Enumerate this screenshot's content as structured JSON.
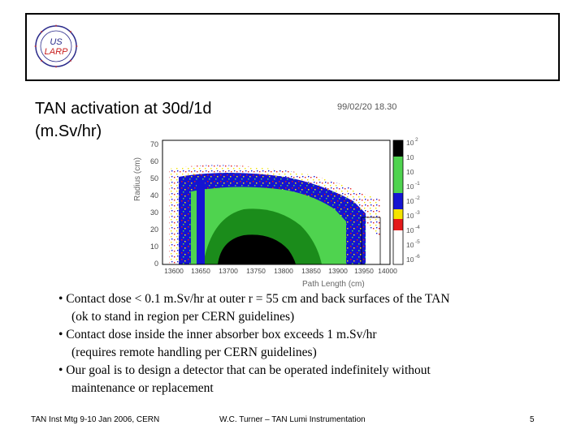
{
  "header": {
    "logo_text_line1": "US",
    "logo_text_line2": "LARP"
  },
  "slide": {
    "title_line1": "TAN activation at 30d/1d",
    "title_line2": "(m.Sv/hr)"
  },
  "plot": {
    "timestamp": "99/02/20   18.30",
    "ylabel": "Radius (cm)",
    "xlabel": "Path Length (cm)",
    "y_ticks": [
      "0",
      "10",
      "20",
      "30",
      "40",
      "50",
      "60",
      "70"
    ],
    "x_ticks": [
      "13600",
      "13650",
      "13700",
      "13750",
      "13800",
      "13850",
      "13900",
      "13950",
      "14000"
    ],
    "colorbar_labels": [
      "10",
      "10",
      "10",
      "10",
      "10",
      "10",
      "10",
      "10",
      "10"
    ],
    "colorbar_exponents": [
      "2",
      "",
      "",
      "-1",
      "-2",
      "-3",
      "-4",
      "-5",
      "-6"
    ],
    "colors": {
      "black": "#000000",
      "dark_green": "#1b8c1b",
      "green": "#4fd34f",
      "blue": "#1414d2",
      "yellow": "#f4e400",
      "red": "#e41a1a",
      "white": "#ffffff"
    }
  },
  "bullets": [
    {
      "line1": "• Contact dose < 0.1 m.Sv/hr at  outer r = 55 cm and back surfaces of the TAN",
      "line2": "(ok to stand in region per CERN guidelines)"
    },
    {
      "line1": "• Contact dose inside the inner absorber box exceeds 1 m.Sv/hr",
      "line2": "(requires remote handling per CERN guidelines)"
    },
    {
      "line1": "• Our goal is to design a detector that can be operated indefinitely without",
      "line2": "maintenance or replacement"
    }
  ],
  "footer": {
    "left": "TAN Inst Mtg 9-10 Jan 2006, CERN",
    "center": "W.C. Turner – TAN Lumi Instrumentation",
    "page": "5"
  }
}
